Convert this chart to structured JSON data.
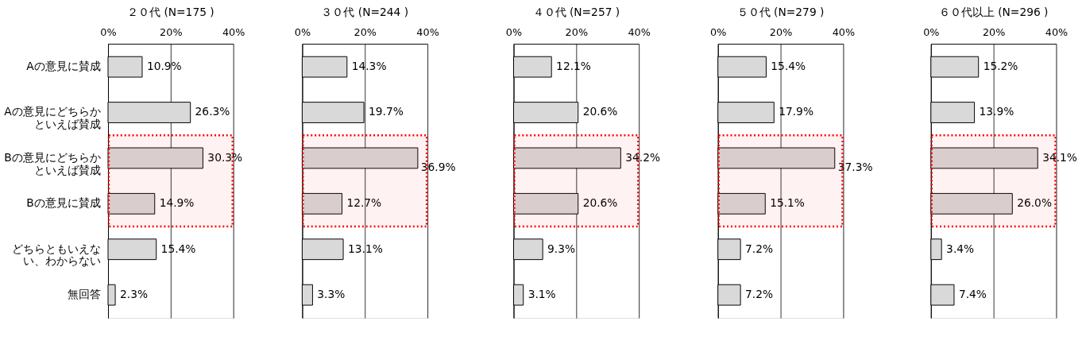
{
  "chart_data": [
    {
      "type": "bar",
      "orientation": "horizontal",
      "title": "２０代 (N=175 )",
      "categories": [
        "Aの意見に賛成",
        "Aの意見にどちらかといえば賛成",
        "Bの意見にどちらかといえば賛成",
        "Bの意見に賛成",
        "どちらともいえない、わからない",
        "無回答"
      ],
      "values": [
        10.9,
        26.3,
        30.3,
        14.9,
        15.4,
        2.3
      ],
      "color": "#d9d9d9",
      "value_labels": [
        "10.9%",
        "26.3%",
        "30.3%",
        "14.9%",
        "15.4%",
        "2.3%"
      ],
      "xlim": [
        0,
        40
      ],
      "xticks": [
        {
          "value": 0,
          "label": "0%"
        },
        {
          "value": 20,
          "label": "20%"
        },
        {
          "value": 40,
          "label": "40%"
        }
      ],
      "grid": "x",
      "bands": [
        {
          "axis": "y",
          "from": "Bの意見にどちらかといえば賛成",
          "to": "Bの意見に賛成",
          "color": "#ff0000"
        }
      ]
    },
    {
      "type": "bar",
      "orientation": "horizontal",
      "title": "３０代 (N=244 )",
      "categories": [
        "Aの意見に賛成",
        "Aの意見にどちらかといえば賛成",
        "Bの意見にどちらかといえば賛成",
        "Bの意見に賛成",
        "どちらともいえない、わからない",
        "無回答"
      ],
      "values": [
        14.3,
        19.7,
        36.9,
        12.7,
        13.1,
        3.3
      ],
      "color": "#d9d9d9",
      "value_labels": [
        "14.3%",
        "19.7%",
        "36.9%",
        "12.7%",
        "13.1%",
        "3.3%"
      ],
      "xlim": [
        0,
        40
      ],
      "xticks": [
        {
          "value": 0,
          "label": "0%"
        },
        {
          "value": 20,
          "label": "20%"
        },
        {
          "value": 40,
          "label": "40%"
        }
      ],
      "grid": "x",
      "tick_labels": "x",
      "bands": [
        {
          "axis": "y",
          "from": "Bの意見にどちらかといえば賛成",
          "to": "Bの意見に賛成",
          "color": "#ff0000"
        }
      ]
    },
    {
      "type": "bar",
      "orientation": "horizontal",
      "title": "４０代 (N=257 )",
      "categories": [
        "Aの意見に賛成",
        "Aの意見にどちらかといえば賛成",
        "Bの意見にどちらかといえば賛成",
        "Bの意見に賛成",
        "どちらともいえない、わからない",
        "無回答"
      ],
      "values": [
        12.1,
        20.6,
        34.2,
        20.6,
        9.3,
        3.1
      ],
      "color": "#d9d9d9",
      "value_labels": [
        "12.1%",
        "20.6%",
        "34.2%",
        "20.6%",
        "9.3%",
        "3.1%"
      ],
      "xlim": [
        0,
        40
      ],
      "xticks": [
        {
          "value": 0,
          "label": "0%"
        },
        {
          "value": 20,
          "label": "20%"
        },
        {
          "value": 40,
          "label": "40%"
        }
      ],
      "grid": "x",
      "tick_labels": "x",
      "bands": [
        {
          "axis": "y",
          "from": "Bの意見にどちらかといえば賛成",
          "to": "Bの意見に賛成",
          "color": "#ff0000"
        }
      ]
    },
    {
      "type": "bar",
      "orientation": "horizontal",
      "title": "５０代 (N=279 )",
      "categories": [
        "Aの意見に賛成",
        "Aの意見にどちらかといえば賛成",
        "Bの意見にどちらかといえば賛成",
        "Bの意見に賛成",
        "どちらともいえない、わからない",
        "無回答"
      ],
      "values": [
        15.4,
        17.9,
        37.3,
        15.1,
        7.2,
        7.2
      ],
      "color": "#d9d9d9",
      "value_labels": [
        "15.4%",
        "17.9%",
        "37.3%",
        "15.1%",
        "7.2%",
        "7.2%"
      ],
      "xlim": [
        0,
        40
      ],
      "xticks": [
        {
          "value": 0,
          "label": "0%"
        },
        {
          "value": 20,
          "label": "20%"
        },
        {
          "value": 40,
          "label": "40%"
        }
      ],
      "grid": "x",
      "tick_labels": "x",
      "bands": [
        {
          "axis": "y",
          "from": "Bの意見にどちらかといえば賛成",
          "to": "Bの意見に賛成",
          "color": "#ff0000"
        }
      ]
    },
    {
      "type": "bar",
      "orientation": "horizontal",
      "title": "６０代以上 (N=296 )",
      "categories": [
        "Aの意見に賛成",
        "Aの意見にどちらかといえば賛成",
        "Bの意見にどちらかといえば賛成",
        "Bの意見に賛成",
        "どちらともいえない、わからない",
        "無回答"
      ],
      "values": [
        15.2,
        13.9,
        34.1,
        26.0,
        3.4,
        7.4
      ],
      "color": "#d9d9d9",
      "value_labels": [
        "15.2%",
        "13.9%",
        "34.1%",
        "26.0%",
        "3.4%",
        "7.4%"
      ],
      "xlim": [
        0,
        40
      ],
      "xticks": [
        {
          "value": 0,
          "label": "0%"
        },
        {
          "value": 20,
          "label": "20%"
        },
        {
          "value": 40,
          "label": "40%"
        }
      ],
      "grid": "x",
      "tick_labels": "x",
      "bands": [
        {
          "axis": "y",
          "from": "Bの意見にどちらかといえば賛成",
          "to": "Bの意見に賛成",
          "color": "#ff0000"
        }
      ]
    }
  ]
}
